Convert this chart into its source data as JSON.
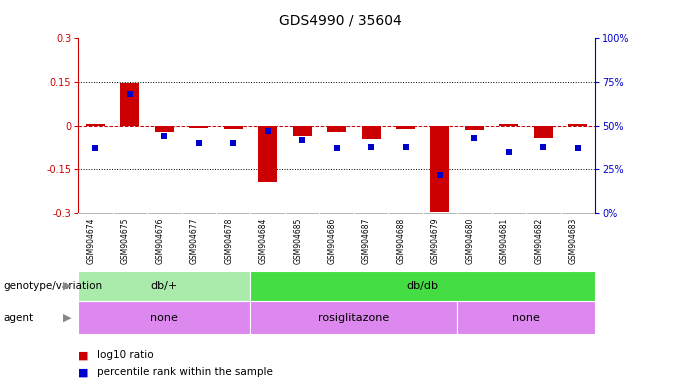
{
  "title": "GDS4990 / 35604",
  "samples": [
    "GSM904674",
    "GSM904675",
    "GSM904676",
    "GSM904677",
    "GSM904678",
    "GSM904684",
    "GSM904685",
    "GSM904686",
    "GSM904687",
    "GSM904688",
    "GSM904679",
    "GSM904680",
    "GSM904681",
    "GSM904682",
    "GSM904683"
  ],
  "log10_ratio": [
    0.005,
    0.148,
    -0.02,
    -0.008,
    -0.01,
    -0.192,
    -0.035,
    -0.02,
    -0.045,
    -0.01,
    -0.295,
    -0.015,
    0.005,
    -0.042,
    0.005
  ],
  "percentile_rank": [
    37,
    68,
    44,
    40,
    40,
    47,
    42,
    37,
    38,
    38,
    22,
    43,
    35,
    38,
    37
  ],
  "ylim_left": [
    -0.3,
    0.3
  ],
  "ylim_right": [
    0,
    100
  ],
  "yticks_left": [
    -0.3,
    -0.15,
    0.0,
    0.15,
    0.3
  ],
  "yticks_right": [
    0,
    25,
    50,
    75,
    100
  ],
  "ytick_labels_left": [
    "-0.3",
    "-0.15",
    "0",
    "0.15",
    "0.3"
  ],
  "ytick_labels_right": [
    "0%",
    "25%",
    "50%",
    "75%",
    "100%"
  ],
  "hlines": [
    0.15,
    -0.15
  ],
  "hline_zero": 0.0,
  "genotype_groups": [
    {
      "label": "db/+",
      "start": 0,
      "end": 5,
      "color": "#aaeaaa"
    },
    {
      "label": "db/db",
      "start": 5,
      "end": 15,
      "color": "#44dd44"
    }
  ],
  "agent_groups": [
    {
      "label": "none",
      "start": 0,
      "end": 5
    },
    {
      "label": "rosiglitazone",
      "start": 5,
      "end": 11
    },
    {
      "label": "none",
      "start": 11,
      "end": 15
    }
  ],
  "agent_color": "#dd88ee",
  "bar_color": "#cc0000",
  "dot_color": "#0000cc",
  "bar_width": 0.55,
  "dot_size": 18,
  "background_color": "#ffffff",
  "plot_bg_color": "#ffffff",
  "zero_line_color": "#cc0000",
  "grid_color": "#000000",
  "left_axis_color": "#cc0000",
  "right_axis_color": "#0000cc",
  "title_fontsize": 10,
  "tick_fontsize": 7,
  "sample_fontsize": 5.5,
  "label_fontsize": 7.5,
  "row_label_fontsize": 7.5,
  "row_content_fontsize": 8
}
